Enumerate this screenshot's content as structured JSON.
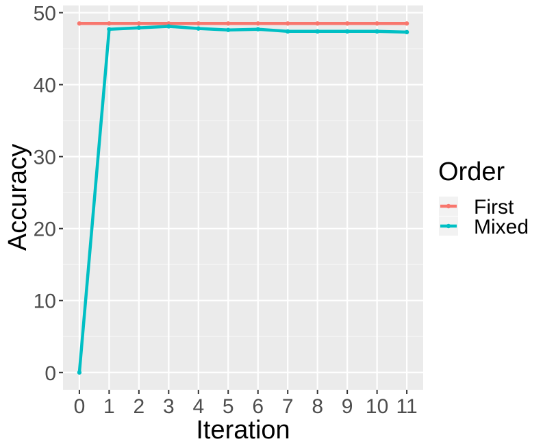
{
  "chart_data": {
    "type": "line",
    "xlabel": "Iteration",
    "ylabel": "Accuracy",
    "x": [
      0,
      1,
      2,
      3,
      4,
      5,
      6,
      7,
      8,
      9,
      10,
      11
    ],
    "x_tick_labels": [
      "0",
      "1",
      "2",
      "3",
      "4",
      "5",
      "6",
      "7",
      "8",
      "9",
      "10",
      "11"
    ],
    "y_ticks": [
      0,
      10,
      20,
      30,
      40,
      50
    ],
    "y_tick_labels": [
      "0",
      "10",
      "20",
      "30",
      "40",
      "50"
    ],
    "xlim": [
      -0.55,
      11.55
    ],
    "ylim": [
      -2.4,
      51
    ],
    "grid": true,
    "legend": {
      "title": "Order",
      "position": "right"
    },
    "series": [
      {
        "name": "First",
        "color": "#F8766D",
        "values": [
          48.5,
          48.5,
          48.5,
          48.5,
          48.5,
          48.5,
          48.5,
          48.5,
          48.5,
          48.5,
          48.5,
          48.5
        ]
      },
      {
        "name": "Mixed",
        "color": "#00BFC4",
        "values": [
          0,
          47.7,
          47.9,
          48.1,
          47.8,
          47.6,
          47.7,
          47.4,
          47.4,
          47.4,
          47.4,
          47.3
        ]
      }
    ]
  }
}
